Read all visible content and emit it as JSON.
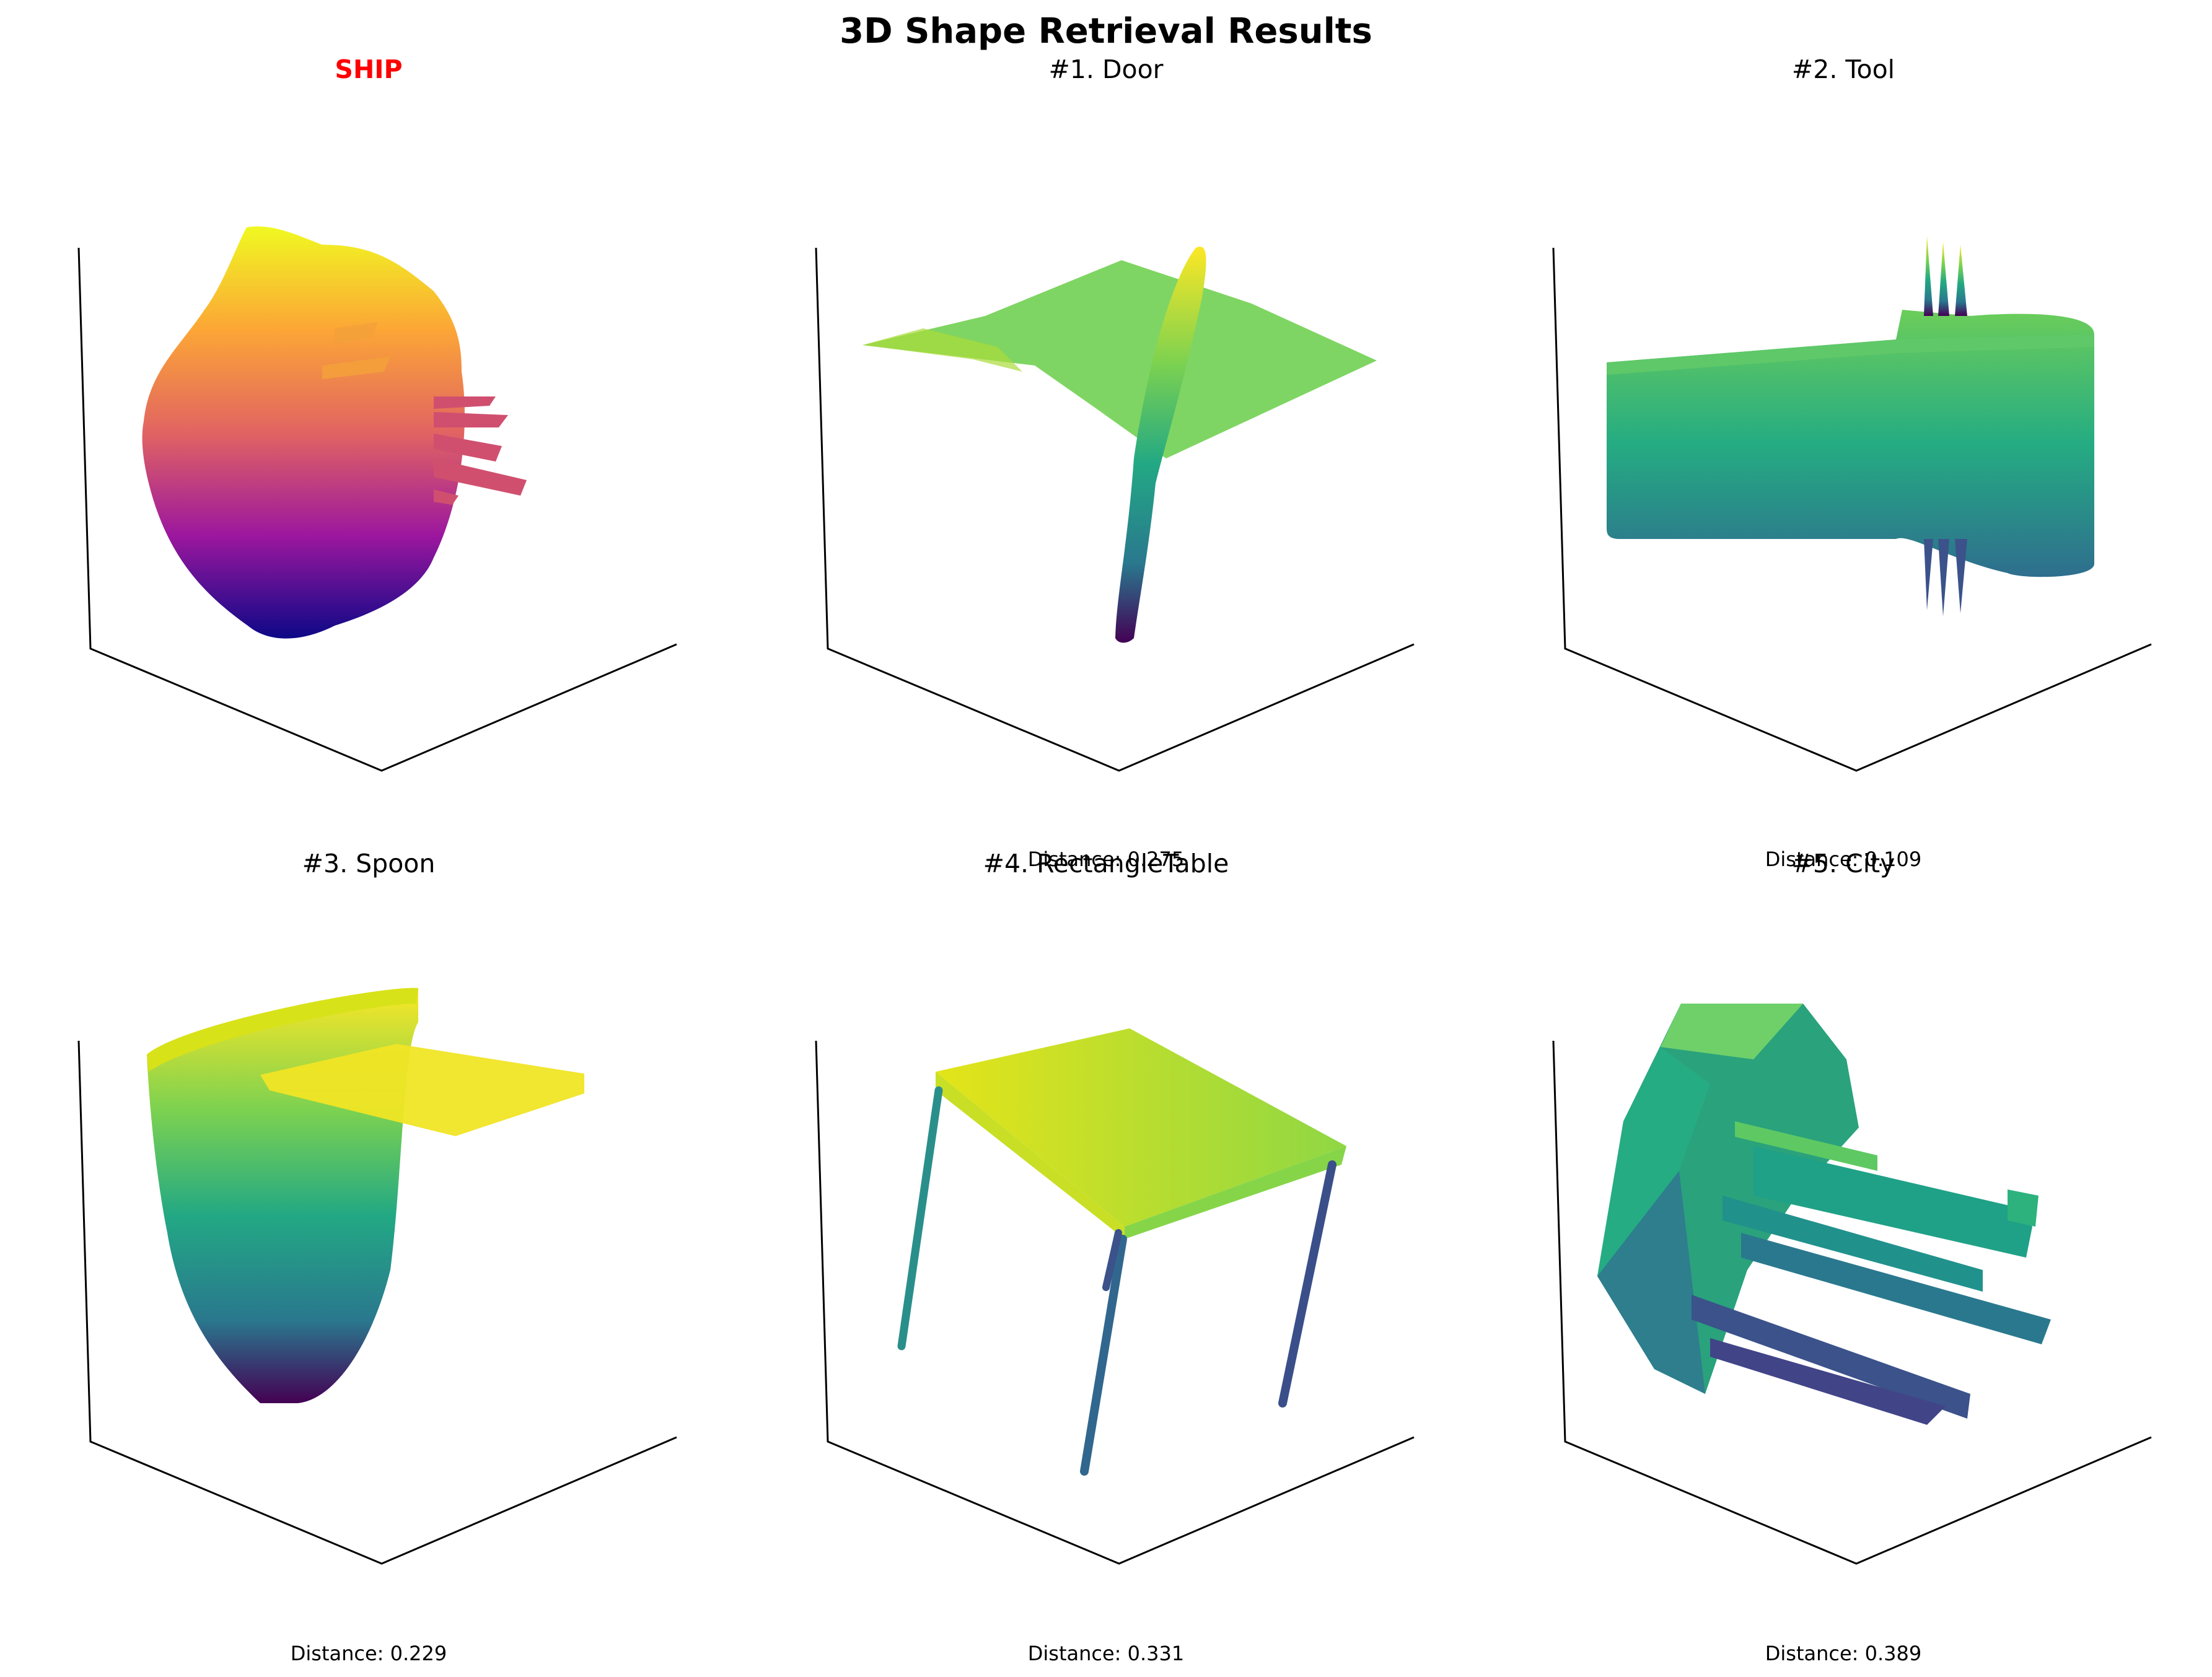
{
  "title": "3D Shape Retrieval Results",
  "query": {
    "label": "SHIP",
    "color": "#ff0000"
  },
  "results": [
    {
      "label": "#1. Door",
      "distance": "Distance: 0.275"
    },
    {
      "label": "#2. Tool",
      "distance": "Distance: 0.109"
    },
    {
      "label": "#3. Spoon",
      "distance": "Distance: 0.229"
    },
    {
      "label": "#4. RectangleTable",
      "distance": "Distance: 0.331"
    },
    {
      "label": "#5. City",
      "distance": "Distance: 0.389"
    }
  ],
  "colormaps": {
    "query": "plasma",
    "results": "viridis"
  }
}
